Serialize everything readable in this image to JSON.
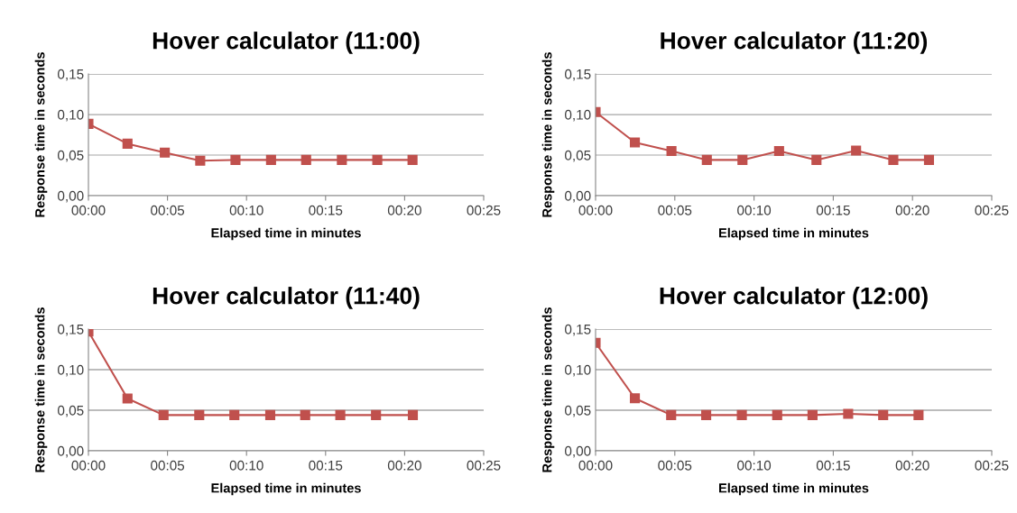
{
  "chart_data": [
    {
      "type": "line",
      "title": "Hover calculator (11:00)",
      "xlabel": "Elapsed time in minutes",
      "ylabel": "Response time in seconds",
      "x": [
        0,
        2.47,
        4.83,
        7.07,
        9.3,
        11.55,
        13.77,
        16.03,
        18.27,
        20.5
      ],
      "series": [
        {
          "color": "#c0504d",
          "values": [
            0.0885,
            0.064,
            0.053,
            0.043,
            0.044,
            0.044,
            0.044,
            0.044,
            0.044,
            0.044
          ]
        }
      ],
      "xlim": [
        0,
        25
      ],
      "xticks": [
        {
          "value": 0,
          "label": "00:00"
        },
        {
          "value": 5,
          "label": "00:05"
        },
        {
          "value": 10,
          "label": "00:10"
        },
        {
          "value": 15,
          "label": "00:15"
        },
        {
          "value": 20,
          "label": "00:20"
        },
        {
          "value": 25,
          "label": "00:25"
        }
      ],
      "ylim": [
        0,
        0.15
      ],
      "yticks": [
        {
          "value": 0,
          "label": "0,00"
        },
        {
          "value": 0.05,
          "label": "0,05"
        },
        {
          "value": 0.1,
          "label": "0,10"
        },
        {
          "value": 0.15,
          "label": "0,15"
        }
      ],
      "grid": "y",
      "legend": false,
      "marker": "square",
      "line_style": "solid"
    },
    {
      "type": "line",
      "title": "Hover calculator (11:20)",
      "xlabel": "Elapsed time in minutes",
      "ylabel": "Response time in seconds",
      "x": [
        0,
        2.48,
        4.79,
        7.02,
        9.27,
        11.58,
        13.94,
        16.44,
        18.79,
        21.04
      ],
      "series": [
        {
          "color": "#c0504d",
          "values": [
            0.103,
            0.0655,
            0.055,
            0.044,
            0.044,
            0.055,
            0.044,
            0.0555,
            0.044,
            0.044
          ]
        }
      ],
      "xlim": [
        0,
        25
      ],
      "xticks": [
        {
          "value": 0,
          "label": "00:00"
        },
        {
          "value": 5,
          "label": "00:05"
        },
        {
          "value": 10,
          "label": "00:10"
        },
        {
          "value": 15,
          "label": "00:15"
        },
        {
          "value": 20,
          "label": "00:20"
        },
        {
          "value": 25,
          "label": "00:25"
        }
      ],
      "ylim": [
        0,
        0.15
      ],
      "yticks": [
        {
          "value": 0,
          "label": "0,00"
        },
        {
          "value": 0.05,
          "label": "0,05"
        },
        {
          "value": 0.1,
          "label": "0,10"
        },
        {
          "value": 0.15,
          "label": "0,15"
        }
      ],
      "grid": "y",
      "legend": false,
      "marker": "square",
      "line_style": "solid"
    },
    {
      "type": "line",
      "title": "Hover calculator (11:40)",
      "xlabel": "Elapsed time in minutes",
      "ylabel": "Response time in seconds",
      "x": [
        0,
        2.47,
        4.75,
        7.01,
        9.23,
        11.5,
        13.71,
        15.93,
        18.19,
        20.52
      ],
      "series": [
        {
          "color": "#c0504d",
          "values": [
            0.147,
            0.0645,
            0.044,
            0.044,
            0.044,
            0.044,
            0.044,
            0.044,
            0.044,
            0.044
          ]
        }
      ],
      "xlim": [
        0,
        25
      ],
      "xticks": [
        {
          "value": 0,
          "label": "00:00"
        },
        {
          "value": 5,
          "label": "00:05"
        },
        {
          "value": 10,
          "label": "00:10"
        },
        {
          "value": 15,
          "label": "00:15"
        },
        {
          "value": 20,
          "label": "00:20"
        },
        {
          "value": 25,
          "label": "00:25"
        }
      ],
      "ylim": [
        0,
        0.15
      ],
      "yticks": [
        {
          "value": 0,
          "label": "0,00"
        },
        {
          "value": 0.05,
          "label": "0,05"
        },
        {
          "value": 0.1,
          "label": "0,10"
        },
        {
          "value": 0.15,
          "label": "0,15"
        }
      ],
      "grid": "y",
      "legend": false,
      "marker": "square",
      "line_style": "solid"
    },
    {
      "type": "line",
      "title": "Hover calculator (12:00)",
      "xlabel": "Elapsed time in minutes",
      "ylabel": "Response time in seconds",
      "x": [
        0,
        2.48,
        4.77,
        6.98,
        9.23,
        11.46,
        13.69,
        15.94,
        18.15,
        20.38
      ],
      "series": [
        {
          "color": "#c0504d",
          "values": [
            0.133,
            0.0647,
            0.044,
            0.044,
            0.044,
            0.044,
            0.044,
            0.0455,
            0.044,
            0.044
          ]
        }
      ],
      "xlim": [
        0,
        25
      ],
      "xticks": [
        {
          "value": 0,
          "label": "00:00"
        },
        {
          "value": 5,
          "label": "00:05"
        },
        {
          "value": 10,
          "label": "00:10"
        },
        {
          "value": 15,
          "label": "00:15"
        },
        {
          "value": 20,
          "label": "00:20"
        },
        {
          "value": 25,
          "label": "00:25"
        }
      ],
      "ylim": [
        0,
        0.15
      ],
      "yticks": [
        {
          "value": 0,
          "label": "0,00"
        },
        {
          "value": 0.05,
          "label": "0,05"
        },
        {
          "value": 0.1,
          "label": "0,10"
        },
        {
          "value": 0.15,
          "label": "0,15"
        }
      ],
      "grid": "y",
      "legend": false,
      "marker": "square",
      "line_style": "solid"
    }
  ]
}
